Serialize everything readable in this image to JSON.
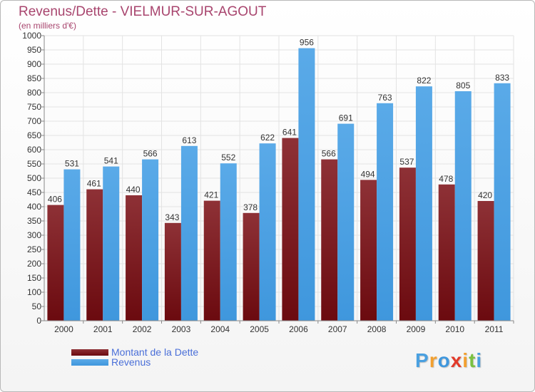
{
  "header": {
    "title": "Revenus/Dette - VIELMUR-SUR-AGOUT",
    "subtitle": "(en milliers d'€)"
  },
  "legend": {
    "items": [
      {
        "label": "Montant de la Dette",
        "color": "#6b0a0f"
      },
      {
        "label": "Revenus",
        "color": "#3f97dd"
      }
    ]
  },
  "logo": {
    "text": "Proxiti",
    "colors": [
      "#4aa0e0",
      "#f2a030",
      "#3f97dd",
      "#e23a2a",
      "#f2a030",
      "#7ac142",
      "#4aa0e0"
    ]
  },
  "colors": {
    "dette": "#6b0a0f",
    "dette_light": "#8e3136",
    "revenus": "#3f97dd",
    "revenus_light": "#5aaae8",
    "title": "#a8456e",
    "grid": "#e3e3e3"
  },
  "chart_data": {
    "type": "bar",
    "categories": [
      "2000",
      "2001",
      "2002",
      "2003",
      "2004",
      "2005",
      "2006",
      "2007",
      "2008",
      "2009",
      "2010",
      "2011"
    ],
    "series": [
      {
        "name": "Montant de la Dette",
        "values": [
          406,
          461,
          440,
          343,
          421,
          378,
          641,
          566,
          494,
          537,
          478,
          420
        ]
      },
      {
        "name": "Revenus",
        "values": [
          531,
          541,
          566,
          613,
          552,
          622,
          956,
          691,
          763,
          822,
          805,
          833
        ]
      }
    ],
    "title": "Revenus/Dette - VIELMUR-SUR-AGOUT",
    "ylabel": "(en milliers d'€)",
    "ylim": [
      0,
      1000
    ],
    "ytick_step": 50,
    "grid": true,
    "legend_position": "bottom-left"
  }
}
